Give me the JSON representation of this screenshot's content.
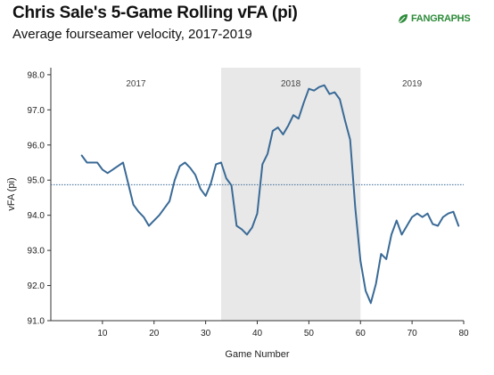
{
  "header": {
    "title": "Chris Sale's 5-Game Rolling vFA (pi)",
    "subtitle": "Average fourseamer velocity, 2017-2019",
    "logo_text": "FANGRAPHS"
  },
  "colors": {
    "line": "#3a6a96",
    "shade": "#e8e8e8",
    "average_line": "#3a6a96",
    "logo": "#2d8b3a"
  },
  "chart_data": {
    "type": "line",
    "title": "Chris Sale's 5-Game Rolling vFA (pi)",
    "subtitle": "Average fourseamer velocity, 2017-2019",
    "xlabel": "Game Number",
    "ylabel": "vFA (pi)",
    "xlim": [
      0,
      80
    ],
    "ylim": [
      91.0,
      98.2
    ],
    "x_ticks": [
      "10",
      "20",
      "30",
      "40",
      "50",
      "60",
      "70",
      "80"
    ],
    "y_ticks": [
      "98.0",
      "97.0",
      "96.0",
      "95.0",
      "94.0",
      "93.0",
      "92.0",
      "91.0"
    ],
    "grid": false,
    "average_line": 94.87,
    "regions": [
      {
        "label": "2017",
        "start": 0,
        "end": 33,
        "shaded": false
      },
      {
        "label": "2018",
        "start": 33,
        "end": 60,
        "shaded": true
      },
      {
        "label": "2019",
        "start": 60,
        "end": 80,
        "shaded": false
      }
    ],
    "series": [
      {
        "x": [
          6,
          7,
          8,
          9,
          10,
          11,
          12,
          13,
          14,
          15,
          16,
          17,
          18,
          19,
          20,
          21,
          22,
          23,
          24,
          25,
          26,
          27,
          28,
          29,
          30,
          31,
          32,
          33,
          34,
          35,
          36,
          37,
          38,
          39,
          40,
          41,
          42,
          43,
          44,
          45,
          46,
          47,
          48,
          49,
          50,
          51,
          52,
          53,
          54,
          55,
          56,
          57,
          58,
          59,
          60,
          61,
          62,
          63,
          64,
          65,
          66,
          67,
          68,
          69,
          70,
          71,
          72,
          73,
          74,
          75,
          76,
          77,
          78,
          79
        ],
        "values": [
          95.7,
          95.5,
          95.5,
          95.5,
          95.3,
          95.2,
          95.3,
          95.4,
          95.5,
          94.9,
          94.3,
          94.1,
          93.95,
          93.7,
          93.85,
          94.0,
          94.2,
          94.4,
          95.0,
          95.4,
          95.5,
          95.35,
          95.15,
          94.75,
          94.55,
          94.9,
          95.45,
          95.5,
          95.05,
          94.85,
          93.7,
          93.6,
          93.45,
          93.65,
          94.05,
          95.45,
          95.75,
          96.4,
          96.5,
          96.3,
          96.55,
          96.85,
          96.75,
          97.2,
          97.6,
          97.55,
          97.65,
          97.7,
          97.45,
          97.5,
          97.3,
          96.7,
          96.15,
          94.2,
          92.7,
          91.85,
          91.5,
          92.05,
          92.9,
          92.75,
          93.45,
          93.85,
          93.45,
          93.7,
          93.95,
          94.05,
          93.95,
          94.05,
          93.75,
          93.7,
          93.95,
          94.05,
          94.1,
          93.7
        ]
      }
    ]
  }
}
